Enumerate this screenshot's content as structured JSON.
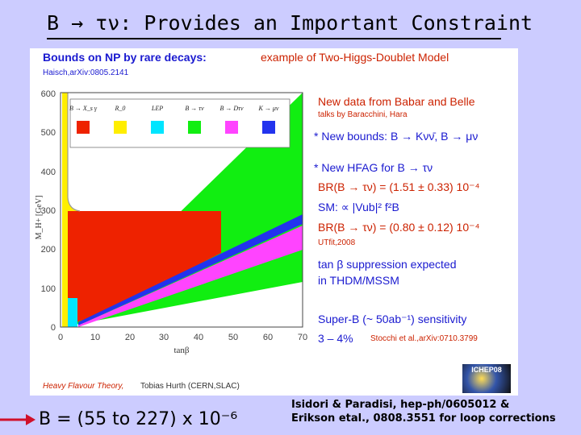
{
  "slide": {
    "title": "B → τν: Provides an Important Constraint",
    "bottom_formula": "B = (55 to 227) x 10⁻⁶",
    "bottom_ref_line1": "Isidori & Paradisi, hep-ph/0605012 &",
    "bottom_ref_line2": "Erikson etal., 0808.3551 for loop corrections"
  },
  "panel": {
    "header_left": "Bounds on NP by rare decays:",
    "header_right": "example of Two-Higgs-Doublet Model",
    "citation": "Haisch,arXiv:0805.2141",
    "footer_left": "Heavy Flavour Theory,",
    "footer_right": "Tobias Hurth (CERN,SLAC)",
    "logo_text": "ICHEP08"
  },
  "notes": {
    "n1": "New data from Babar and Belle",
    "n2": "talks by Baracchini, Hara",
    "n3": "* New bounds: B → Kνν̄, B → μν",
    "n4": "* New HFAG for B → τν",
    "n5": "BR(B → τν) = (1.51 ± 0.33) 10⁻⁴",
    "n6": "SM: ∝ |Vub|² f²B",
    "n7": "BR(B → τν) = (0.80 ± 0.12) 10⁻⁴",
    "n8": "UTfit,2008",
    "n9": "tan β suppression expected",
    "n10": "in THDM/MSSM",
    "n11": "Super-B (~ 50ab⁻¹)   sensitivity",
    "n12": "3 – 4%",
    "n13": "Stocchi et al.,arXiv:0710.3799"
  },
  "colors": {
    "red": "#ee2200",
    "yellow": "#ffee00",
    "cyan": "#00e5ff",
    "green": "#11ee11",
    "magenta": "#ff44ff",
    "blue": "#2233ee"
  },
  "chart_data": {
    "type": "area",
    "xlabel": "tanβ",
    "ylabel": "M_H+ [GeV]",
    "xlim": [
      0,
      70
    ],
    "ylim": [
      0,
      600
    ],
    "x_ticks": [
      "0",
      "10",
      "20",
      "30",
      "40",
      "50",
      "60",
      "70"
    ],
    "y_ticks": [
      "0",
      "100",
      "200",
      "300",
      "400",
      "500",
      "600"
    ],
    "legend": [
      "B → X_s γ",
      "R_0",
      "LEP",
      "B → τν",
      "B → Dτν",
      "K → μν"
    ],
    "legend_colors": [
      "#ee2200",
      "#ffee00",
      "#00e5ff",
      "#11ee11",
      "#ff44ff",
      "#2233ee"
    ],
    "regions": [
      {
        "name": "B → Xsγ",
        "bound_mass": 295,
        "tanb_range": [
          1,
          40
        ]
      },
      {
        "name": "LEP",
        "bound_mass": 79
      },
      {
        "name": "B → τν",
        "green_upper": [
          [
            0,
            0
          ],
          [
            70,
            600
          ]
        ],
        "green_lower": [
          [
            0,
            0
          ],
          [
            70,
            115
          ]
        ]
      },
      {
        "name": "K → μν",
        "band": [
          [
            5,
            10
          ],
          [
            70,
            200
          ]
        ]
      },
      {
        "name": "B → Dτν",
        "band": [
          [
            5,
            8
          ],
          [
            70,
            175
          ]
        ]
      }
    ]
  }
}
